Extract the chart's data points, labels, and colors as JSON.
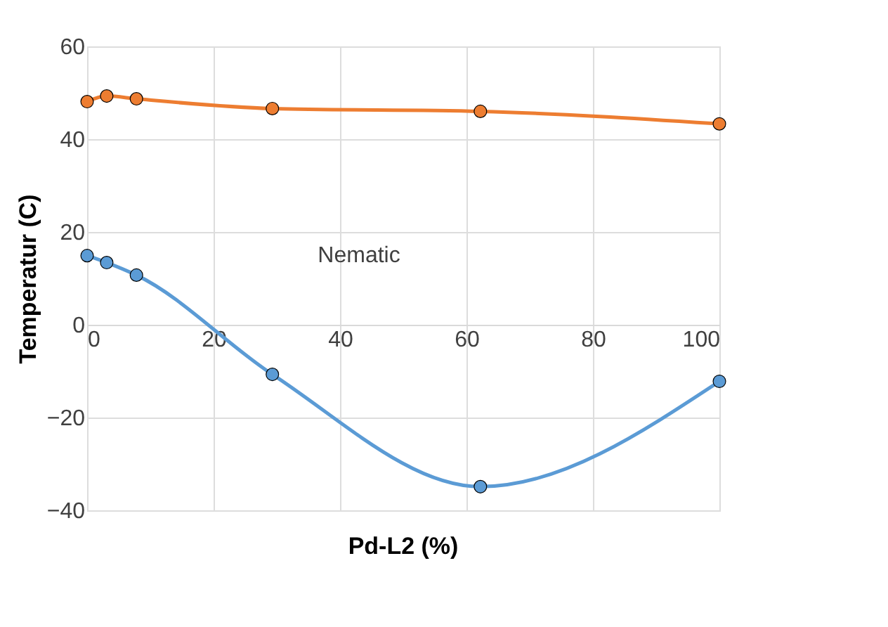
{
  "chart_data": {
    "type": "line",
    "xlabel": "Pd-L2 (%)",
    "ylabel": "Temperatur (C)",
    "xlim": [
      0,
      100
    ],
    "xticks": [
      0,
      20,
      40,
      60,
      80,
      100
    ],
    "ylim": [
      -40,
      60
    ],
    "yticks": [
      -40,
      -20,
      0,
      20,
      40,
      60
    ],
    "grid": true,
    "marker": "circle",
    "line_style": "solid",
    "annotations": [
      "Nematic"
    ],
    "series": [
      {
        "color": "#ed7d31",
        "x": [
          0,
          3.1,
          7.8,
          29.3,
          62.2,
          100
        ],
        "values": [
          48.1,
          49.3,
          48.7,
          46.6,
          46,
          43.3
        ]
      },
      {
        "color": "#5b9bd5",
        "x": [
          0,
          3.1,
          7.8,
          29.3,
          62.2,
          100
        ],
        "values": [
          14.9,
          13.4,
          10.7,
          -10.7,
          -34.9,
          -12.2
        ]
      }
    ]
  }
}
